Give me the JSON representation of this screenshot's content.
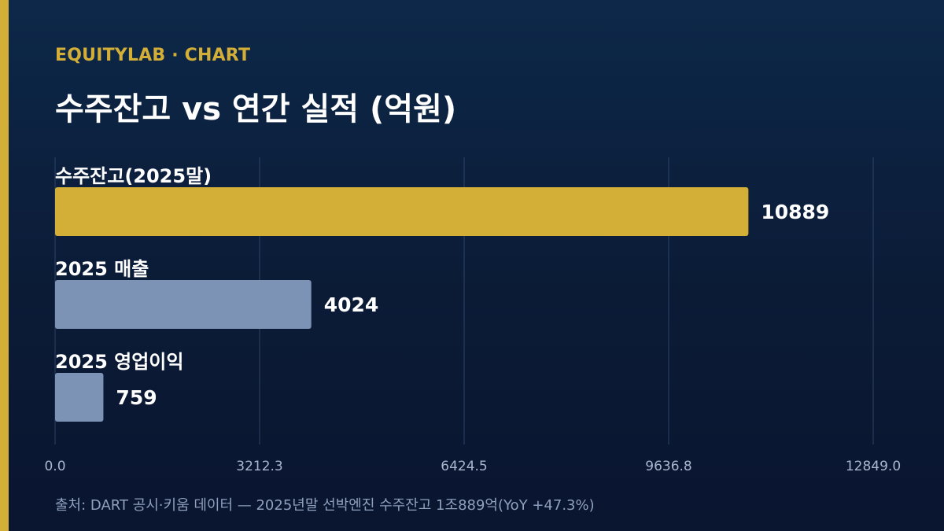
{
  "header": {
    "brand": "EQUITYLAB · CHART",
    "title": "수주잔고 vs 연간 실적 (억원)"
  },
  "footer": {
    "source": "출처: DART 공시·키움 데이터 — 2025년말 선박엔진 수주잔고 1조889억(YoY +47.3%)"
  },
  "colors": {
    "accent": "#d4af37",
    "secondary_bar": "#7c93b5",
    "grid": "#2c4366",
    "tick_label": "#a9b6cc",
    "label": "#ffffff"
  },
  "chart_data": {
    "type": "bar",
    "orientation": "horizontal",
    "categories": [
      "수주잔고(2025말)",
      "2025 매출",
      "2025 영업이익"
    ],
    "values": [
      10889,
      4024,
      759
    ],
    "value_labels": [
      "10889",
      "4024",
      "759"
    ],
    "xlim": [
      0,
      12849.0
    ],
    "x_ticks": [
      "0.0",
      "3212.3",
      "6424.5",
      "9636.8",
      "12849.0"
    ],
    "grid": true
  }
}
